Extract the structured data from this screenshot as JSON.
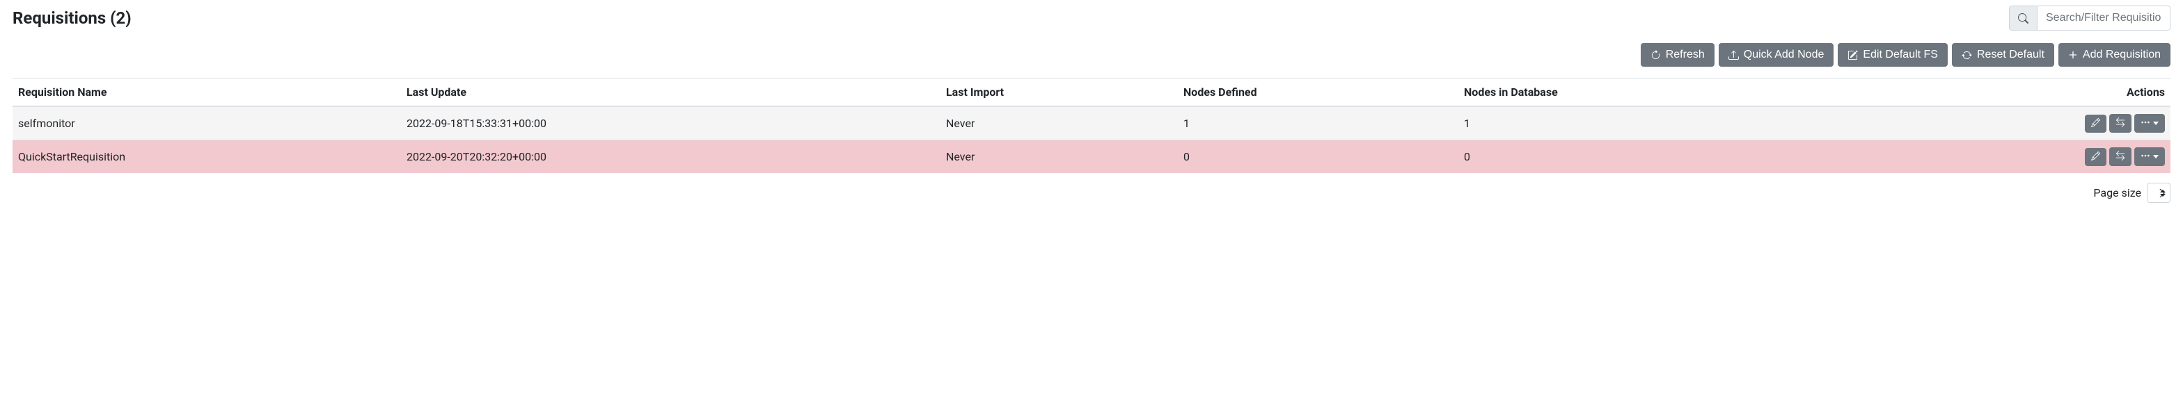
{
  "header": {
    "title_prefix": "Requisitions",
    "count": 2,
    "title_full": "Requisitions (2)"
  },
  "search": {
    "placeholder": "Search/Filter Requisition",
    "value": ""
  },
  "toolbar": {
    "refresh_label": "Refresh",
    "quick_add_node_label": "Quick Add Node",
    "edit_default_fs_label": "Edit Default FS",
    "reset_default_label": "Reset Default",
    "add_requisition_label": "Add Requisition"
  },
  "table": {
    "columns": {
      "name": "Requisition Name",
      "last_update": "Last Update",
      "last_import": "Last Import",
      "nodes_defined": "Nodes Defined",
      "nodes_db": "Nodes in Database",
      "actions": "Actions"
    },
    "rows": [
      {
        "name": "selfmonitor",
        "last_update": "2022-09-18T15:33:31+00:00",
        "last_import": "Never",
        "nodes_defined": "1",
        "nodes_db": "1",
        "row_style": "normal"
      },
      {
        "name": "QuickStartRequisition",
        "last_update": "2022-09-20T20:32:20+00:00",
        "last_import": "Never",
        "nodes_defined": "0",
        "nodes_db": "0",
        "row_style": "danger"
      }
    ],
    "row_colors": {
      "normal": "#f5f5f5",
      "danger": "#f2c9ce"
    }
  },
  "footer": {
    "page_size_label": "Page size",
    "page_size_value": ""
  },
  "colors": {
    "btn_bg": "#6c757d",
    "btn_fg": "#ffffff",
    "border": "#dee2e6",
    "text": "#212529",
    "search_icon_bg": "#e9ecef"
  }
}
